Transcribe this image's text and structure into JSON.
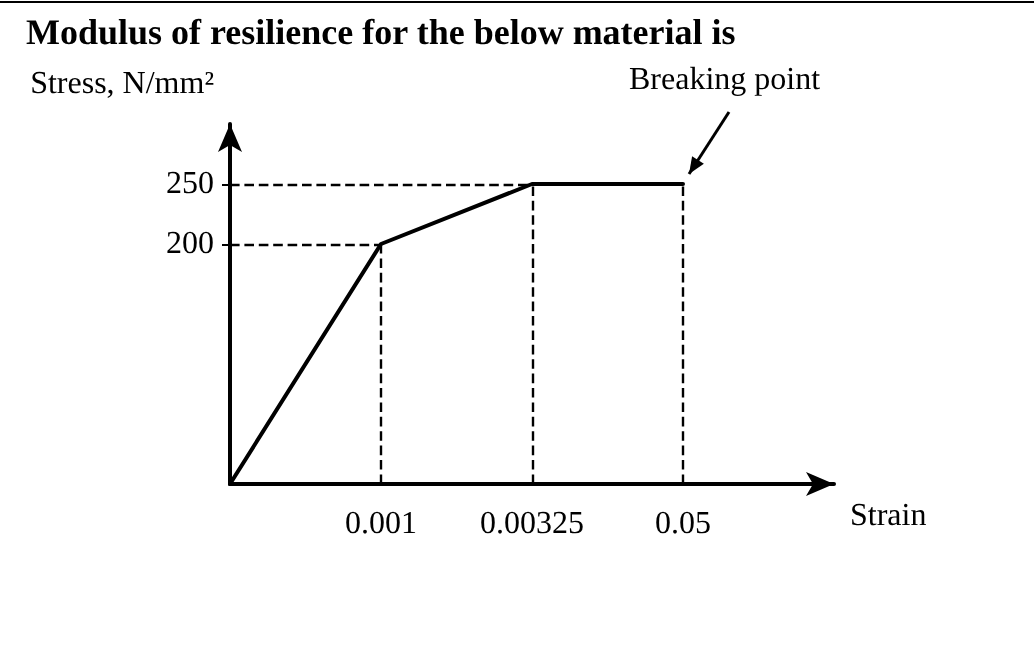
{
  "chart_data": {
    "type": "line",
    "title": "Modulus of resilience for the below material is",
    "xlabel": "Strain",
    "ylabel": "Stress, N/mm²",
    "categories": [
      null,
      "0.001",
      "0.00325",
      "0.05",
      null
    ],
    "series": [
      {
        "color": "#000000",
        "values": [
          0,
          200,
          250,
          250,
          null
        ]
      }
    ],
    "ylim": [
      0,
      300
    ],
    "yticks": [
      200,
      250
    ],
    "ref_lines": [
      {
        "axis": "y",
        "value": 200,
        "color": "#000000",
        "line_style": "dashed"
      },
      {
        "axis": "y",
        "value": 250,
        "color": "#000000",
        "line_style": "dashed"
      },
      {
        "axis": "x",
        "value": "0.001",
        "color": "#000000",
        "line_style": "dashed"
      },
      {
        "axis": "x",
        "value": "0.00325",
        "color": "#000000",
        "line_style": "dashed"
      },
      {
        "axis": "x",
        "value": "0.05",
        "color": "#000000",
        "line_style": "dashed"
      }
    ],
    "annotations": [
      {
        "text": "Breaking point",
        "x": "0.05",
        "y": 250
      }
    ],
    "grid": false,
    "marker": "none",
    "line_style": "solid"
  }
}
